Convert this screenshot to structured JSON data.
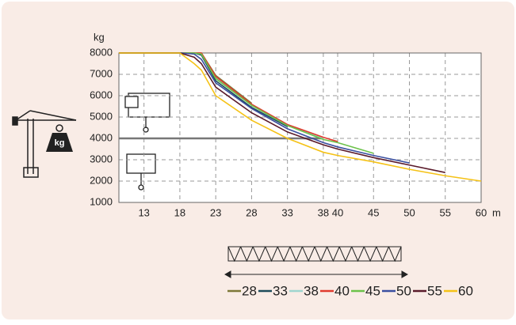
{
  "chart_data": {
    "type": "line",
    "y_label": "kg",
    "x_unit": "m",
    "x": [
      9.5,
      18,
      20,
      21,
      23,
      28,
      33,
      38,
      40,
      45,
      50,
      55,
      60
    ],
    "xlim": [
      9.5,
      60
    ],
    "xticks": [
      13,
      18,
      23,
      28,
      33,
      38,
      40,
      45,
      50,
      55,
      60
    ],
    "ylim": [
      1000,
      8000
    ],
    "yticks": [
      1000,
      2000,
      3000,
      4000,
      5000,
      6000,
      7000,
      8000
    ],
    "grid": true,
    "reference_line": {
      "y": 4000,
      "x_end": 38
    },
    "series": [
      {
        "name": "28",
        "color": "#7d7838",
        "values": [
          8000,
          8000,
          8000,
          8000,
          6950,
          5650,
          null,
          null,
          null,
          null,
          null,
          null,
          null
        ]
      },
      {
        "name": "33",
        "color": "#1d4b5a",
        "values": [
          8000,
          8000,
          8000,
          7900,
          6700,
          5450,
          4550,
          null,
          null,
          null,
          null,
          null,
          null
        ]
      },
      {
        "name": "38",
        "color": "#9fd6cf",
        "values": [
          8000,
          8000,
          8000,
          7950,
          6850,
          5550,
          4600,
          4000,
          null,
          null,
          null,
          null,
          null
        ]
      },
      {
        "name": "40",
        "color": "#e03a2e",
        "values": [
          8000,
          8000,
          8000,
          8000,
          6900,
          5600,
          4650,
          4050,
          3850,
          null,
          null,
          null,
          null
        ]
      },
      {
        "name": "45",
        "color": "#6cc24a",
        "values": [
          8000,
          8000,
          8000,
          7950,
          6800,
          5550,
          4600,
          3950,
          3800,
          3300,
          null,
          null,
          null
        ]
      },
      {
        "name": "50",
        "color": "#3a4fa0",
        "values": [
          8000,
          8000,
          7950,
          7700,
          6600,
          5400,
          4450,
          3800,
          3600,
          3200,
          2850,
          null,
          null
        ]
      },
      {
        "name": "55",
        "color": "#5a1a2a",
        "values": [
          8000,
          8000,
          7800,
          7500,
          6400,
          5200,
          4300,
          3700,
          3500,
          3100,
          2750,
          2400,
          null
        ]
      },
      {
        "name": "60",
        "color": "#f5c216",
        "values": [
          8000,
          8000,
          7500,
          7200,
          6000,
          4850,
          4000,
          3350,
          3200,
          2900,
          2550,
          2250,
          2000
        ]
      }
    ],
    "weight_icon_label": "kg"
  }
}
